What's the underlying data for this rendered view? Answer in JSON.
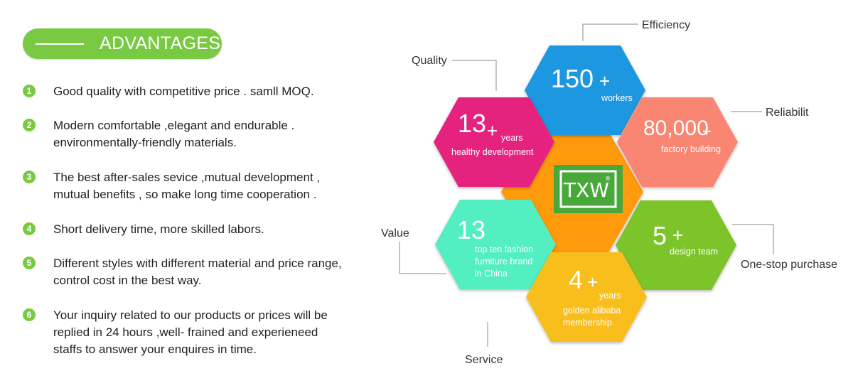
{
  "header": {
    "title": "ADVANTAGES"
  },
  "advantages": [
    {
      "num": "1",
      "lines": [
        "Good quality with competitive price . samll MOQ."
      ]
    },
    {
      "num": "2",
      "lines": [
        "Modern comfortable ,elegant and endurable .",
        "environmentally-friendly materials."
      ]
    },
    {
      "num": "3",
      "lines": [
        "The best after-sales sevice ,mutual development ,",
        "mutual benefits , so make long time cooperation ."
      ]
    },
    {
      "num": "4",
      "lines": [
        "Short delivery time, more skilled labors."
      ]
    },
    {
      "num": "5",
      "lines": [
        "Different styles with different material and price range,",
        "control cost in the best way."
      ]
    },
    {
      "num": "6",
      "lines": [
        "Your inquiry related to our products or prices will be",
        "replied in 24 hours ,well- frained and experieneed",
        "staffs to answer your enquires in time."
      ]
    }
  ],
  "infographic": {
    "logo": {
      "text": "TXW",
      "mark": "®"
    },
    "labels": {
      "efficiency": "Efficiency",
      "quality": "Quality",
      "reliability": "Reliabilit",
      "value": "Value",
      "one_stop": "One-stop purchase",
      "service": "Service"
    },
    "hexes": {
      "workers": {
        "big": "150",
        "plus": "+",
        "lines": [
          "workers"
        ]
      },
      "years": {
        "big": "13",
        "plus": "+",
        "sub": "years",
        "lines": [
          "healthy development"
        ]
      },
      "factory": {
        "big": "80,000",
        "plus": "+",
        "lines": [
          "factory building"
        ]
      },
      "brand": {
        "big": "13",
        "lines": [
          "top ten fashion",
          "furniture brand",
          "in China"
        ]
      },
      "design": {
        "big": "5",
        "plus": "+",
        "lines": [
          "design team"
        ]
      },
      "alibaba": {
        "big": "4",
        "plus": "+",
        "sub": "years",
        "lines": [
          "golden alibaba",
          "membership"
        ]
      }
    },
    "colors": {
      "workers": "#1b97e0",
      "years": "#e6237f",
      "factory": "#f98672",
      "brand": "#52efc2",
      "design": "#7cc42a",
      "alibaba": "#f8be1e",
      "center": "#ff9a10",
      "logo_green": "#49a83a",
      "accent_green": "#7ac943"
    }
  }
}
